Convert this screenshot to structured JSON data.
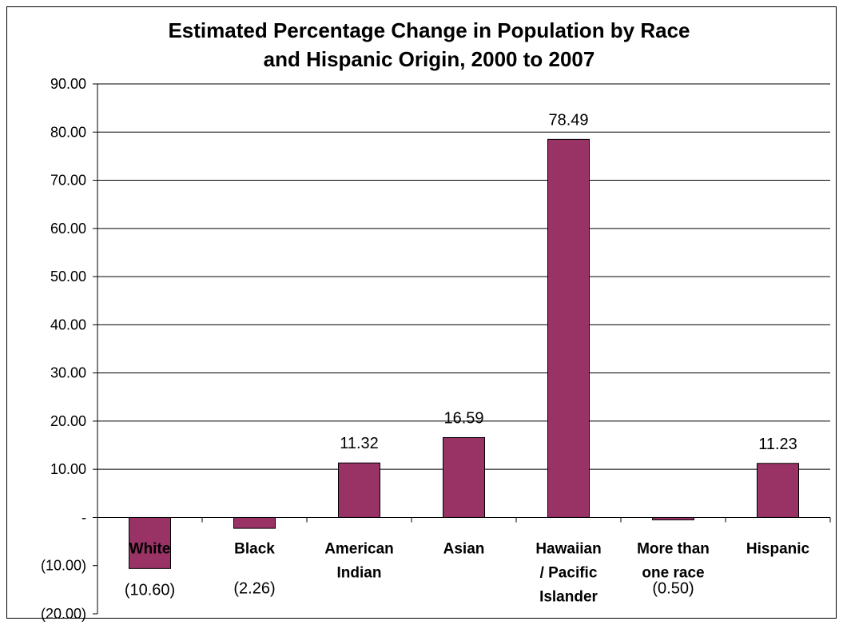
{
  "chart_data": {
    "type": "bar",
    "title": [
      "Estimated Percentage Change in Population by Race",
      "and Hispanic Origin, 2000 to 2007"
    ],
    "categories": [
      [
        "White"
      ],
      [
        "Black"
      ],
      [
        "American",
        "Indian"
      ],
      [
        "Asian"
      ],
      [
        "Hawaiian",
        "/ Pacific",
        "Islander"
      ],
      [
        "More than",
        "one race"
      ],
      [
        "Hispanic"
      ]
    ],
    "values": [
      -10.6,
      -2.26,
      11.32,
      16.59,
      78.49,
      -0.5,
      11.23
    ],
    "data_labels": [
      "(10.60)",
      "(2.26)",
      "11.32",
      "16.59",
      "78.49",
      "(0.50)",
      "11.23"
    ],
    "ylim": [
      -20,
      90
    ],
    "yticks": [
      90,
      80,
      70,
      60,
      50,
      40,
      30,
      20,
      10,
      0,
      -10,
      -20
    ],
    "ytick_labels": [
      "90.00",
      "80.00",
      "70.00",
      "60.00",
      "50.00",
      "40.00",
      "30.00",
      "20.00",
      "10.00",
      "-",
      "(10.00)",
      "(20.00)"
    ],
    "grid": true,
    "bar_color": "#993366",
    "xlabel": "",
    "ylabel": ""
  }
}
